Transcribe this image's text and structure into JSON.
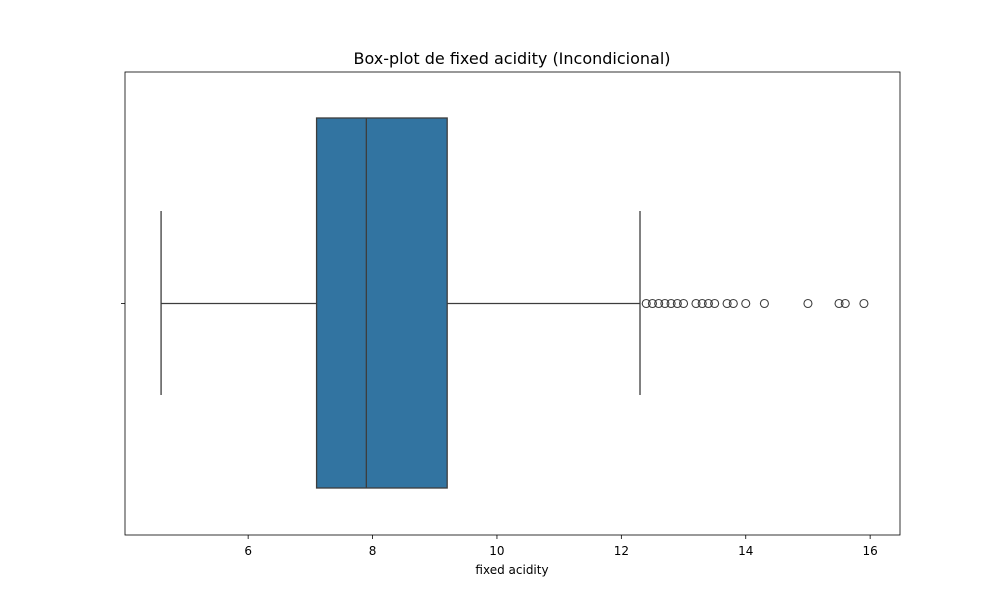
{
  "chart_data": {
    "type": "boxplot",
    "orientation": "horizontal",
    "title": "Box-plot de fixed acidity (Incondicional)",
    "xlabel": "fixed acidity",
    "ylabel": "",
    "xlim": [
      4.02,
      16.48
    ],
    "xticks": [
      6,
      8,
      10,
      12,
      14,
      16
    ],
    "grid": false,
    "box": {
      "whisker_low": 4.6,
      "q1": 7.1,
      "median": 7.9,
      "q3": 9.2,
      "whisker_high": 12.3,
      "color": "#3274a1",
      "edge_color": "#3d3d3d"
    },
    "outliers": [
      12.4,
      12.5,
      12.6,
      12.7,
      12.8,
      12.9,
      13.0,
      13.2,
      13.3,
      13.4,
      13.5,
      13.7,
      13.8,
      14.0,
      14.3,
      15.0,
      15.5,
      15.6,
      15.9
    ]
  }
}
